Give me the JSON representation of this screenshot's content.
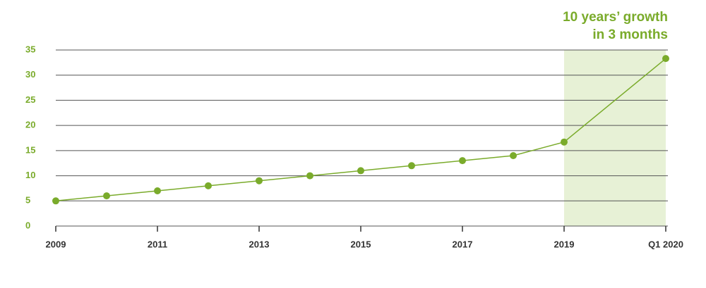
{
  "chart_data": {
    "type": "line",
    "annotation": [
      "10 years’ growth",
      "in 3 months"
    ],
    "categories": [
      "2009",
      null,
      "2011",
      null,
      "2013",
      null,
      "2015",
      null,
      "2017",
      null,
      "2019",
      "Q1 2020"
    ],
    "series": [
      {
        "color": "#7aab2b",
        "values": [
          5,
          6,
          7,
          8,
          9,
          10,
          11,
          12,
          13,
          14,
          16.7,
          33.3
        ]
      }
    ],
    "highlight": {
      "from": "2019",
      "to": "Q1 2020",
      "color": "#e7f1d6"
    },
    "ylim": [
      0,
      35
    ],
    "yticks": [
      0,
      5,
      10,
      15,
      20,
      25,
      30,
      35
    ],
    "grid": true
  }
}
